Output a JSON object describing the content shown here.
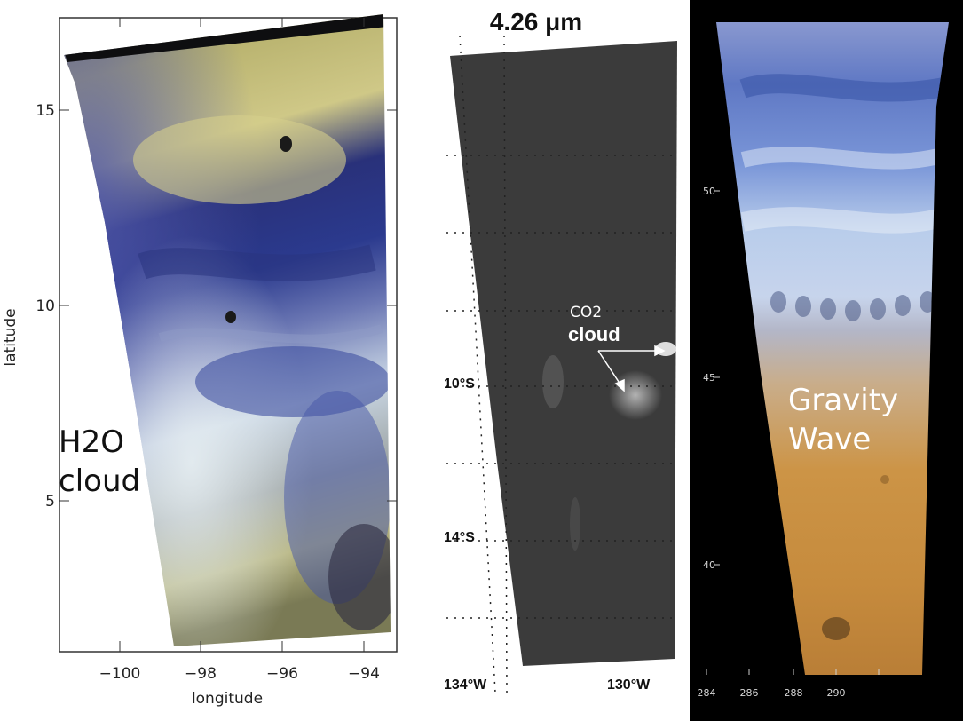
{
  "panel_h2o": {
    "cloud_label_line1": "H2O",
    "cloud_label_line2": "cloud",
    "x_axis_title": "longitude",
    "y_axis_title": "latitude",
    "x_ticks": [
      "−100",
      "−98",
      "−96",
      "−94"
    ],
    "y_ticks": [
      "15",
      "10",
      "5"
    ]
  },
  "panel_co2": {
    "title": "4.26 μm",
    "annotation_line1": "CO2",
    "annotation_line2": "cloud",
    "lat_labels": [
      "10°S",
      "14°S"
    ],
    "lon_labels": [
      "134°W",
      "130°W"
    ]
  },
  "panel_gravity": {
    "label_line1": "Gravity",
    "label_line2": "Wave",
    "y_ticks": [
      "50",
      "45",
      "40"
    ],
    "x_ticks": [
      "284",
      "286",
      "288",
      "290"
    ]
  },
  "colors": {
    "h2o_blue": "#2a3a8c",
    "h2o_yellow": "#c9c27a",
    "co2_gray": "#3a3a3a",
    "gravity_blue": "#6f86c9",
    "gravity_orange": "#c98a3c"
  }
}
